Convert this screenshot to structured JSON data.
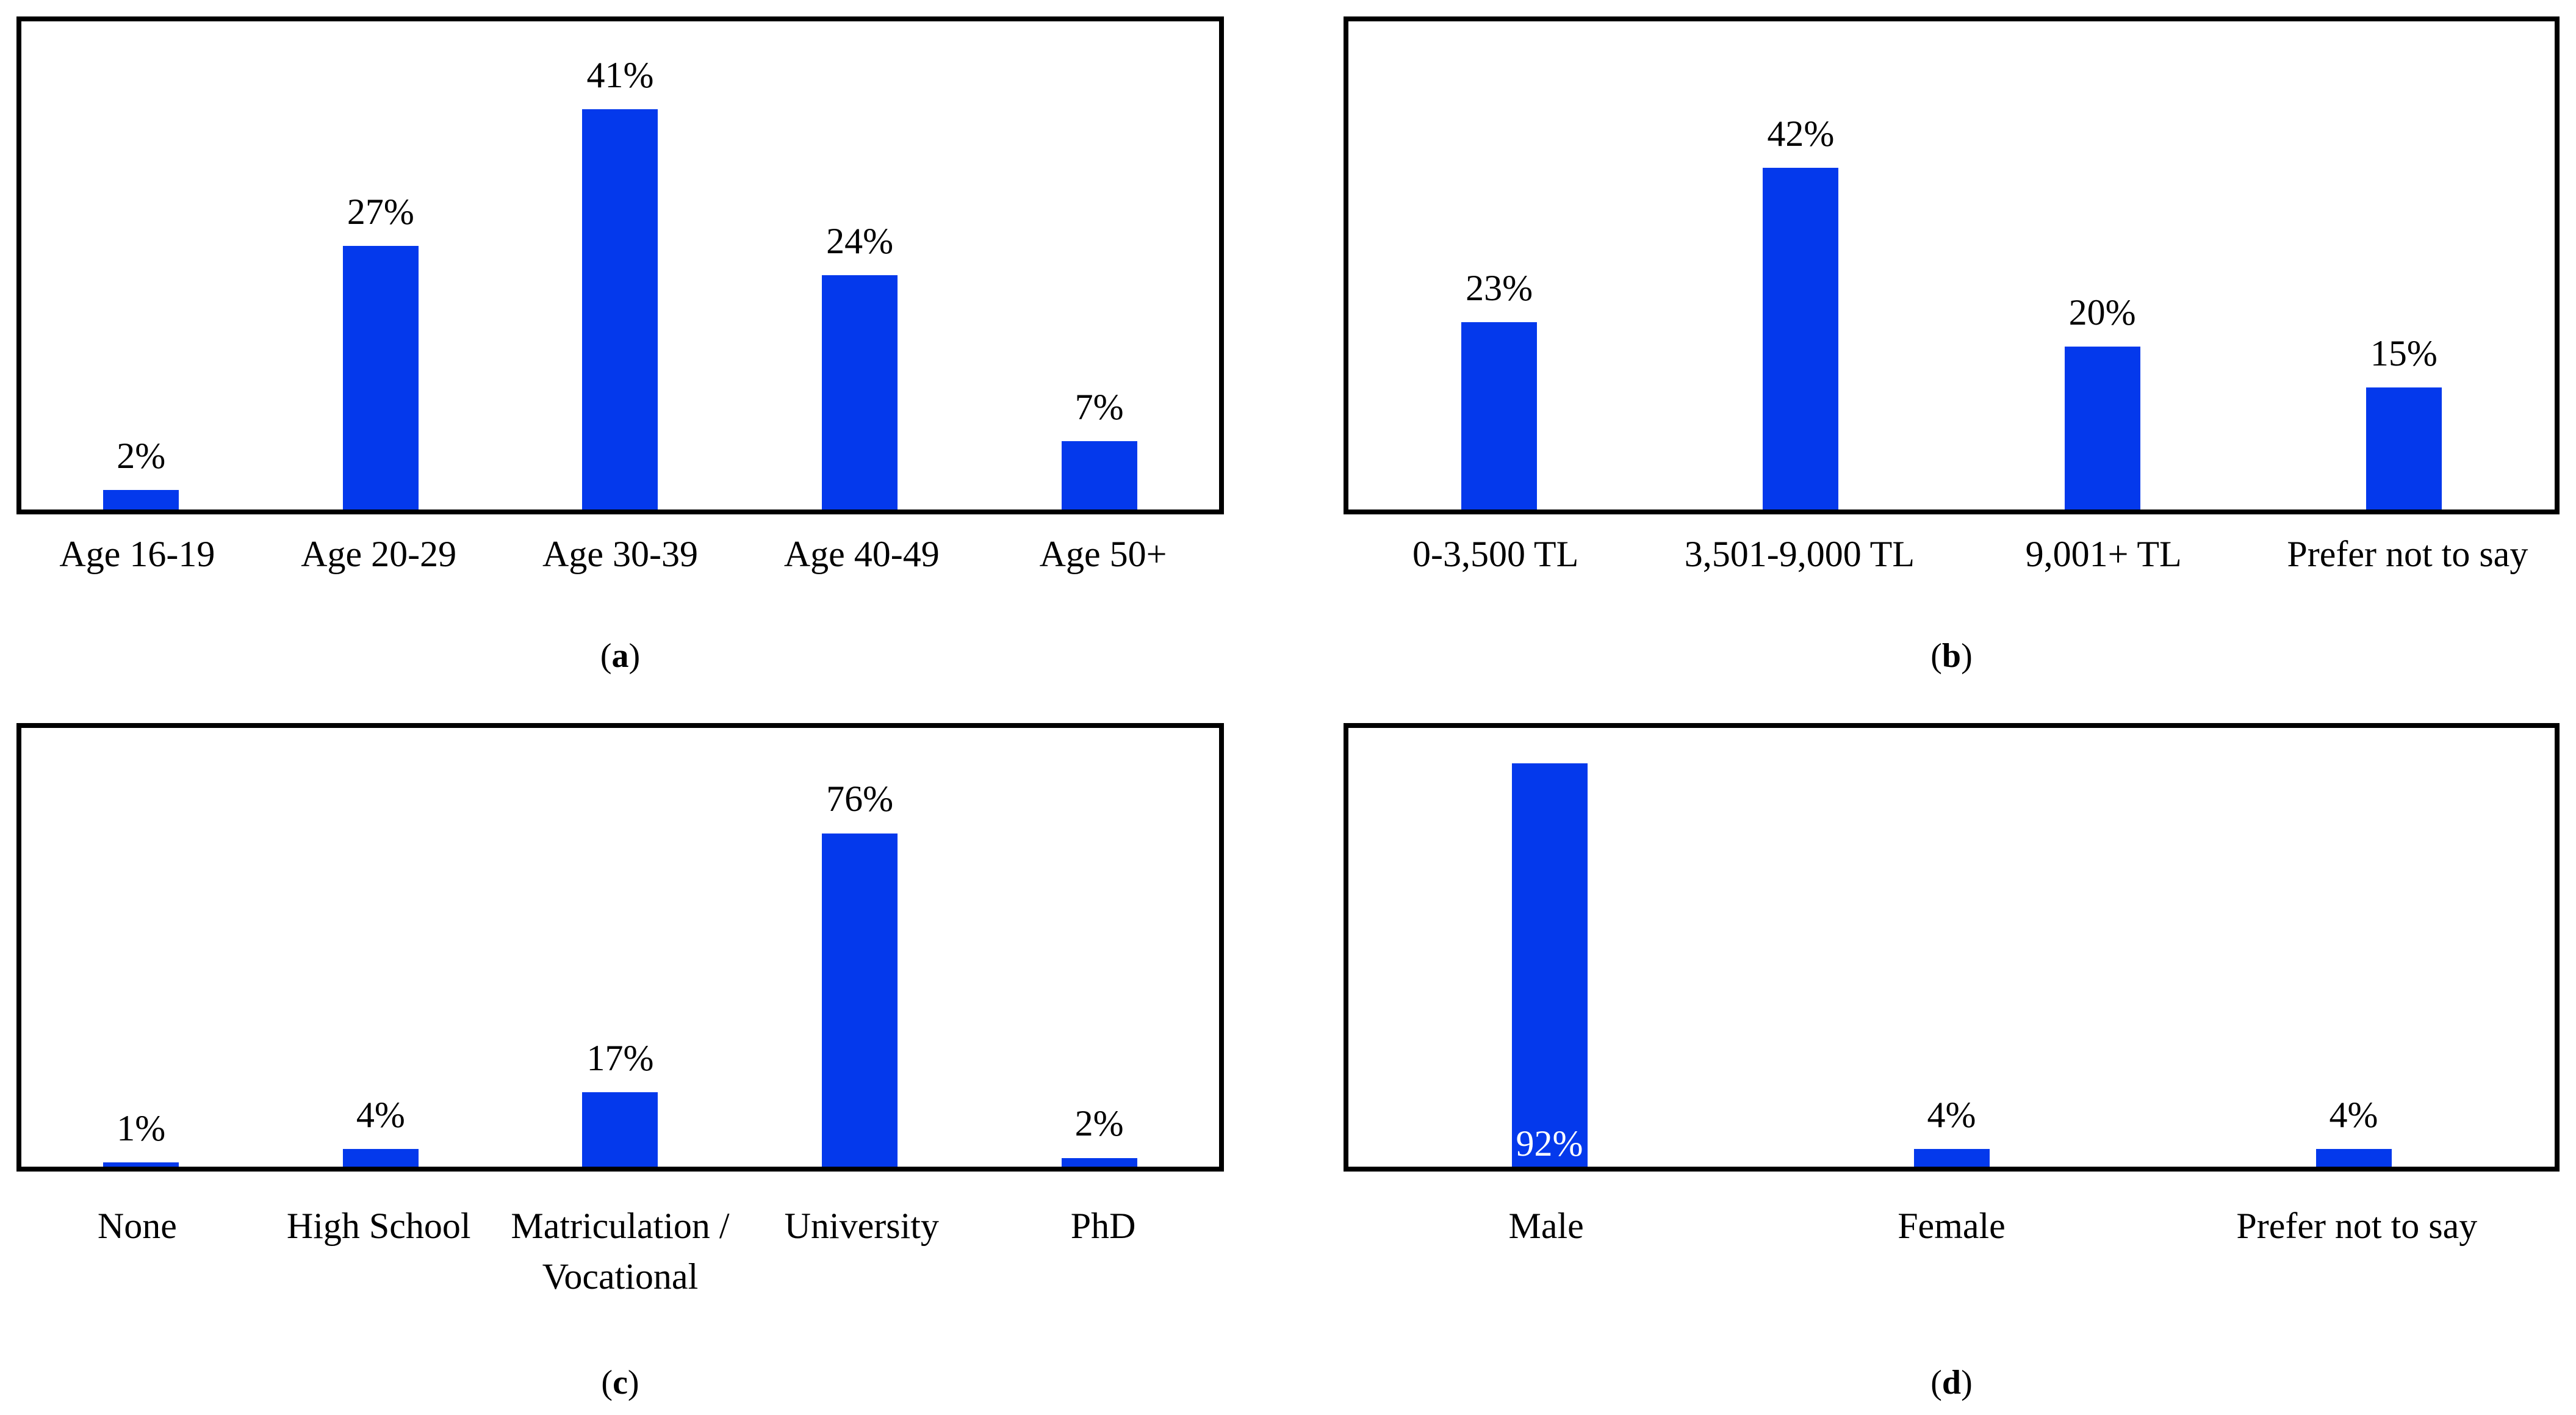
{
  "figure": {
    "background": "#ffffff",
    "bar_color": "#0439EC",
    "border_color": "#000000",
    "text_color": "#000000",
    "inside_label_color": "#ffffff"
  },
  "chart_data": [
    {
      "id": "a",
      "type": "bar",
      "title": "",
      "xlabel": "",
      "ylabel": "",
      "caption": {
        "open": "(",
        "letter": "a",
        "close": ")"
      },
      "categories": [
        "Age 16-19",
        "Age 20-29",
        "Age 30-39",
        "Age 40-49",
        "Age 50+"
      ],
      "values": [
        2,
        27,
        41,
        24,
        7
      ],
      "data_labels": [
        "2%",
        "27%",
        "41%",
        "24%",
        "7%"
      ],
      "ylim": [
        0,
        50
      ],
      "grid": false,
      "legend": false,
      "label_position": "outside-end",
      "inside_label_indices": []
    },
    {
      "id": "b",
      "type": "bar",
      "title": "",
      "xlabel": "",
      "ylabel": "",
      "caption": {
        "open": "(",
        "letter": "b",
        "close": ")"
      },
      "categories": [
        "0-3,500 TL",
        "3,501-9,000 TL",
        "9,001+ TL",
        "Prefer not to say"
      ],
      "values": [
        23,
        42,
        20,
        15
      ],
      "data_labels": [
        "23%",
        "42%",
        "20%",
        "15%"
      ],
      "ylim": [
        0,
        60
      ],
      "grid": false,
      "legend": false,
      "label_position": "outside-end",
      "inside_label_indices": []
    },
    {
      "id": "c",
      "type": "bar",
      "title": "",
      "xlabel": "",
      "ylabel": "",
      "caption": {
        "open": "(",
        "letter": "c",
        "close": ")"
      },
      "categories": [
        "None",
        "High School",
        "Matriculation /\nVocational",
        "University",
        "PhD"
      ],
      "values": [
        1,
        4,
        17,
        76,
        2
      ],
      "data_labels": [
        "1%",
        "4%",
        "17%",
        "76%",
        "2%"
      ],
      "ylim": [
        0,
        100
      ],
      "grid": false,
      "legend": false,
      "label_position": "outside-end",
      "inside_label_indices": []
    },
    {
      "id": "d",
      "type": "bar",
      "title": "",
      "xlabel": "",
      "ylabel": "",
      "caption": {
        "open": "(",
        "letter": "d",
        "close": ")"
      },
      "categories": [
        "Male",
        "Female",
        "Prefer not to say"
      ],
      "values": [
        92,
        4,
        4
      ],
      "data_labels": [
        "92%",
        "4%",
        "4%"
      ],
      "ylim": [
        0,
        100
      ],
      "grid": false,
      "legend": false,
      "label_position": "outside-end",
      "inside_label_indices": [
        0
      ]
    }
  ]
}
